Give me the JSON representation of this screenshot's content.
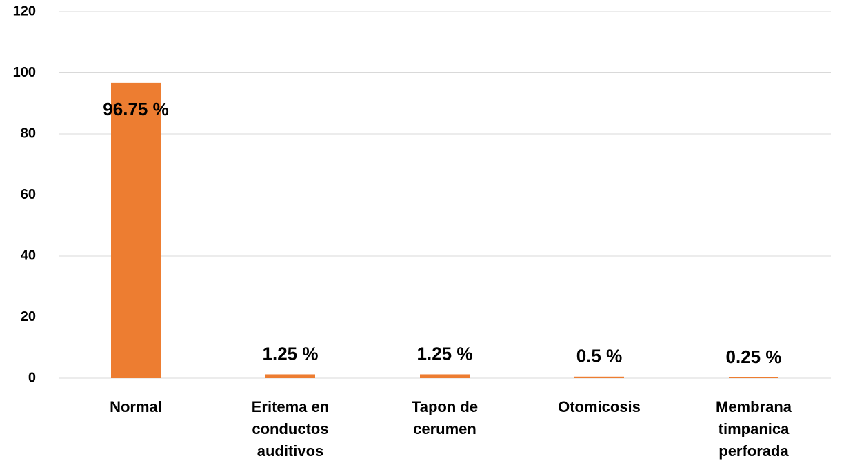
{
  "chart_data": {
    "type": "bar",
    "categories": [
      "Normal",
      "Eritema en conductos auditivos",
      "Tapon de cerumen",
      "Otomicosis",
      "Membrana timpanica perforada"
    ],
    "values": [
      96.75,
      1.25,
      1.25,
      0.5,
      0.25
    ],
    "value_labels": [
      "96.75 %",
      "1.25 %",
      "1.25 %",
      "0.5 %",
      "0.25 %"
    ],
    "color": "#ed7d31",
    "ylim": [
      0,
      120
    ],
    "yticks": [
      0,
      20,
      40,
      60,
      80,
      100,
      120
    ],
    "grid": true
  }
}
